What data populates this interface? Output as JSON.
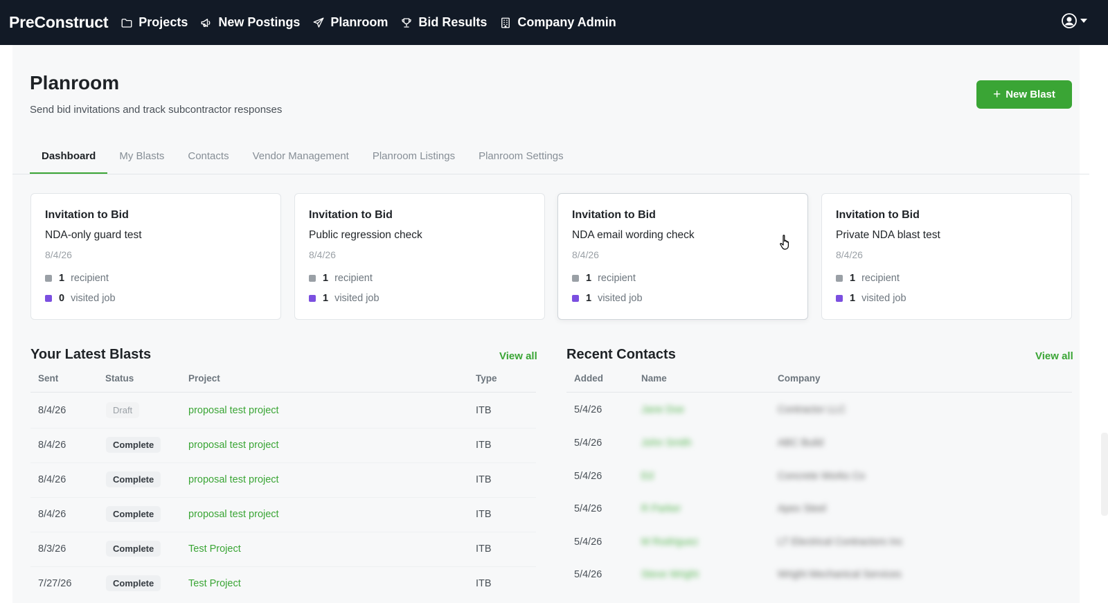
{
  "brand": "PreConstruct",
  "nav": [
    {
      "label": "Projects",
      "icon": "folder-icon"
    },
    {
      "label": "New Postings",
      "icon": "megaphone-icon"
    },
    {
      "label": "Planroom",
      "icon": "send-icon"
    },
    {
      "label": "Bid Results",
      "icon": "trophy-icon"
    },
    {
      "label": "Company Admin",
      "icon": "building-icon"
    }
  ],
  "page": {
    "title": "Planroom",
    "subtitle": "Send bid invitations and track subcontractor responses",
    "new_blast_label": "New Blast"
  },
  "tabs": [
    "Dashboard",
    "My Blasts",
    "Contacts",
    "Vendor Management",
    "Planroom Listings",
    "Planroom Settings"
  ],
  "active_tab": "Dashboard",
  "colors": {
    "accent": "#3aa535",
    "recipient": "#9aa0a6",
    "visited": "#7b4fe0",
    "nav_bg": "#121a26"
  },
  "cards": [
    {
      "type": "Invitation to Bid",
      "name": "NDA-only guard test",
      "date": "8/4/26",
      "recipients": "1",
      "recipient_label": "recipient",
      "visited": "0",
      "visited_label": "visited job"
    },
    {
      "type": "Invitation to Bid",
      "name": "Public regression check",
      "date": "8/4/26",
      "recipients": "1",
      "recipient_label": "recipient",
      "visited": "1",
      "visited_label": "visited job"
    },
    {
      "type": "Invitation to Bid",
      "name": "NDA email wording check",
      "date": "8/4/26",
      "recipients": "1",
      "recipient_label": "recipient",
      "visited": "1",
      "visited_label": "visited job"
    },
    {
      "type": "Invitation to Bid",
      "name": "Private NDA blast test",
      "date": "8/4/26",
      "recipients": "1",
      "recipient_label": "recipient",
      "visited": "1",
      "visited_label": "visited job"
    }
  ],
  "blasts": {
    "title": "Your Latest Blasts",
    "view_all": "View all",
    "columns": [
      "Sent",
      "Status",
      "Project",
      "Type"
    ],
    "rows": [
      {
        "sent": "8/4/26",
        "status": "Draft",
        "project": "proposal test project",
        "type": "ITB"
      },
      {
        "sent": "8/4/26",
        "status": "Complete",
        "project": "proposal test project",
        "type": "ITB"
      },
      {
        "sent": "8/4/26",
        "status": "Complete",
        "project": "proposal test project",
        "type": "ITB"
      },
      {
        "sent": "8/4/26",
        "status": "Complete",
        "project": "proposal test project",
        "type": "ITB"
      },
      {
        "sent": "8/3/26",
        "status": "Complete",
        "project": "Test Project",
        "type": "ITB"
      },
      {
        "sent": "7/27/26",
        "status": "Complete",
        "project": "Test Project",
        "type": "ITB"
      }
    ]
  },
  "contacts": {
    "title": "Recent Contacts",
    "view_all": "View all",
    "columns": [
      "Added",
      "Name",
      "Company"
    ],
    "rows": [
      {
        "added": "5/4/26",
        "name": "Jane Doe",
        "company": "Contractor LLC"
      },
      {
        "added": "5/4/26",
        "name": "John Smith",
        "company": "ABC Build"
      },
      {
        "added": "5/4/26",
        "name": "Ed",
        "company": "Concrete Works Co"
      },
      {
        "added": "5/4/26",
        "name": "R Parker",
        "company": "Apex Steel"
      },
      {
        "added": "5/4/26",
        "name": "M Rodriguez",
        "company": "LT Electrical Contractors Inc"
      },
      {
        "added": "5/4/26",
        "name": "Steve Wright",
        "company": "Wright Mechanical Services"
      }
    ]
  }
}
